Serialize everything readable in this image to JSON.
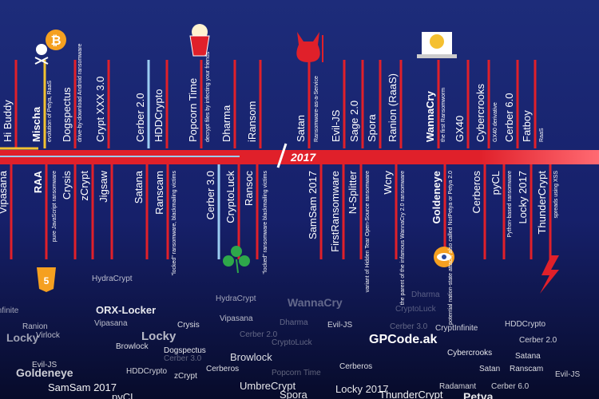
{
  "year": "2017",
  "above": [
    {
      "label": "Hi Buddy"
    },
    {
      "label": "Mischa",
      "note": "evolution of Petya, RaaS",
      "bold": true
    },
    {
      "label": "Dogspectus",
      "note": "drive-by-download Android ransomware"
    },
    {
      "label": "Crypt XXX 3.0"
    },
    {
      "label": "Cerber 2.0"
    },
    {
      "label": "HDDCrypto"
    },
    {
      "label": "Popcorn Time",
      "note": "decrypt files by infecting your friends"
    },
    {
      "label": "Dharma"
    },
    {
      "label": "iRansom"
    },
    {
      "label": "Satan",
      "note": "Ransomware-as-a-Service"
    },
    {
      "label": "Evil-JS"
    },
    {
      "label": "Sage 2.0"
    },
    {
      "label": "Spora"
    },
    {
      "label": "Ranion (RaaS)"
    },
    {
      "label": "WannaCry",
      "note": "the first Ransomworm",
      "bold": true
    },
    {
      "label": "GX40"
    },
    {
      "label": "Cybercrooks",
      "note": "GX40 derivative"
    },
    {
      "label": "Cerber 6.0"
    },
    {
      "label": "Fatboy",
      "note": "RaaS"
    }
  ],
  "below": [
    {
      "label": "Vipasana"
    },
    {
      "label": "RAA",
      "note": "pure JavaScript ransomware",
      "bold": true
    },
    {
      "label": "Crysis"
    },
    {
      "label": "zCrypt"
    },
    {
      "label": "Jigsaw"
    },
    {
      "label": "Satana"
    },
    {
      "label": "Ranscam",
      "note": "\"locked\" ransomware, blackmailing victims"
    },
    {
      "label": "Cerber 3.0"
    },
    {
      "label": "CryptoLuck"
    },
    {
      "label": "Ransoc",
      "note": "\"locked\" ransomware blackmailing victims"
    },
    {
      "label": "SamSam 2017"
    },
    {
      "label": "FirstRansomware"
    },
    {
      "label": "N-Splitter",
      "note": "variant of Hidden Tear Open-Source ransomware"
    },
    {
      "label": "Wcry",
      "note": "the parent of the infamous WannaCry 2.0 ransomware"
    },
    {
      "label": "Goldeneye",
      "note": "potential nation-state attack, also called NotPetya or Petya 2.0",
      "bold": true
    },
    {
      "label": "Cerberos"
    },
    {
      "label": "pyCL",
      "note": "Python-based ransomware"
    },
    {
      "label": "Locky 2017"
    },
    {
      "label": "ThunderCrypt",
      "note": "spreads using XSS"
    }
  ],
  "word_cloud": [
    "HydraCrypt",
    "CryptInfinite",
    "ORX-Locker",
    "HydraCrypt",
    "WannaCry",
    "Dharma",
    "CryptoLuck",
    "Ranion",
    "Vipasana",
    "Crysis",
    "Vipasana",
    "Dharma",
    "Evil-JS",
    "Cerber 3.0",
    "CryptInfinite",
    "HDDCrypto",
    "Locky",
    "Virlock",
    "Locky",
    "Browlock",
    "Dogspectus",
    "Cerber 2.0",
    "CryptoLuck",
    "GPCode.ak",
    "Cerber 2.0",
    "Cybercrooks",
    "Evil-JS",
    "Goldeneye",
    "Browlock",
    "HDDCrypto",
    "Cerber 3.0",
    "zCrypt",
    "Cerberos",
    "Cerberos",
    "Satana",
    "Satan",
    "Ranscam",
    "Evil-JS",
    "SamSam 2017",
    "UmbreCrypt",
    "Popcorn Time",
    "Locky 2017",
    "ThunderCrypt",
    "Spora",
    "Radamant",
    "Petya",
    "Cerber 6.0",
    "pyCL"
  ]
}
